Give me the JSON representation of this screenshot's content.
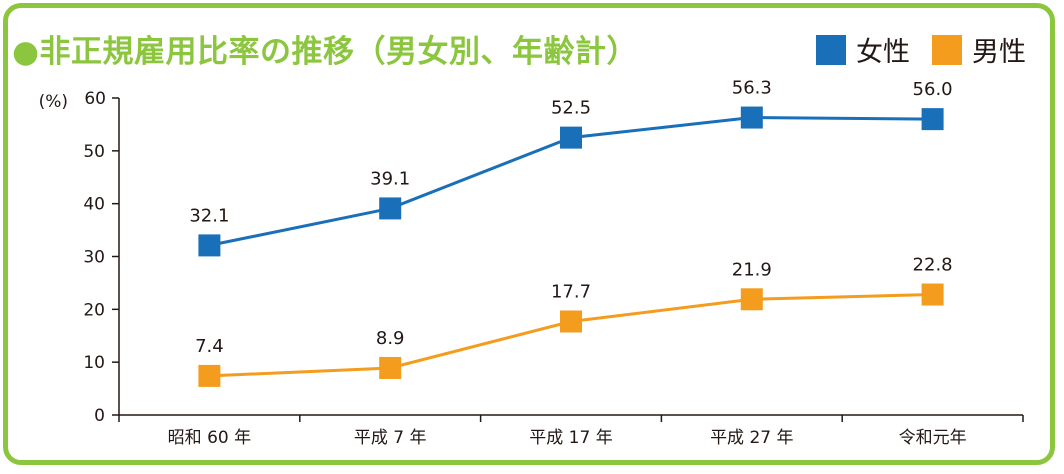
{
  "title": "●非正規雇用比率の推移（男女別、年齢計）",
  "chart_data": {
    "type": "line",
    "ylabel": "(%)",
    "ylim": [
      0,
      60
    ],
    "yticks": [
      0,
      10,
      20,
      30,
      40,
      50,
      60
    ],
    "categories": [
      "昭和 60 年",
      "平成 7 年",
      "平成 17 年",
      "平成 27 年",
      "令和元年"
    ],
    "series": [
      {
        "name": "女性",
        "color": "#1a70b8",
        "values": [
          32.1,
          39.1,
          52.5,
          56.3,
          56.0
        ]
      },
      {
        "name": "男性",
        "color": "#f39c1e",
        "values": [
          7.4,
          8.9,
          17.7,
          21.9,
          22.8
        ]
      }
    ],
    "legend_position": "top-right",
    "grid": false
  }
}
